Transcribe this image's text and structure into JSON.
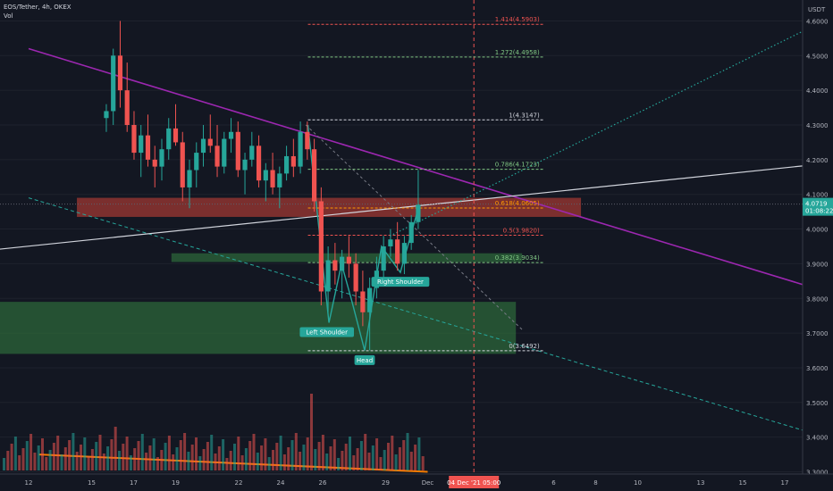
{
  "header": {
    "symbol_line": "EOS/Tether, 4h, OKEX",
    "indicator": "Vol"
  },
  "price_axis": {
    "currency": "USDT",
    "current_price": "4.0719",
    "countdown": "01:08:22"
  },
  "time_axis": {
    "crosshair_label": "04 Dec '21   05:00"
  },
  "colors": {
    "background": "#131722",
    "up": "#26a69a",
    "down": "#ef5350",
    "channel_line": "#9c27b0",
    "volume_trend": "#f57c00",
    "neckline": "#d1d4dc",
    "red_zone": "#a83a33",
    "green_zone": "#2e6b3a"
  },
  "chart_data": {
    "type": "candlestick",
    "title": "EOS/Tether, 4h, OKEX",
    "ylim": [
      3.3,
      4.65
    ],
    "y_ticks": [
      3.3,
      3.4,
      3.5,
      3.6,
      3.7,
      3.8,
      3.9,
      4.0,
      4.1,
      4.2,
      4.3,
      4.4,
      4.5,
      4.6
    ],
    "y_tick_labels": [
      "3.3000",
      "3.4000",
      "3.5000",
      "3.6000",
      "3.7000",
      "3.8000",
      "3.9000",
      "4.0000",
      "4.1000",
      "4.2000",
      "4.3000",
      "4.4000",
      "4.5000",
      "4.6000"
    ],
    "x_ticks": [
      {
        "label": "12",
        "day": 12
      },
      {
        "label": "15",
        "day": 15
      },
      {
        "label": "17",
        "day": 17
      },
      {
        "label": "19",
        "day": 19
      },
      {
        "label": "22",
        "day": 22
      },
      {
        "label": "24",
        "day": 24
      },
      {
        "label": "26",
        "day": 26
      },
      {
        "label": "29",
        "day": 29
      },
      {
        "label": "Dec",
        "day": 31
      },
      {
        "label": "6",
        "day": 37
      },
      {
        "label": "8",
        "day": 39
      },
      {
        "label": "10",
        "day": 41
      },
      {
        "label": "13",
        "day": 44
      },
      {
        "label": "15",
        "day": 46
      },
      {
        "label": "17",
        "day": 48
      }
    ],
    "fib_levels": [
      {
        "label": "1.414(4.5903)",
        "value": 4.5903,
        "color": "#ef5350"
      },
      {
        "label": "1.272(4.4958)",
        "value": 4.4958,
        "color": "#81c784"
      },
      {
        "label": "1(4.3147)",
        "value": 4.3147,
        "color": "#d1d4dc"
      },
      {
        "label": "0.786(4.1723)",
        "value": 4.1723,
        "color": "#81c784"
      },
      {
        "label": "0.618(4.0605)",
        "value": 4.0605,
        "color": "#ff9800"
      },
      {
        "label": "0.5(3.9820)",
        "value": 3.982,
        "color": "#ef5350"
      },
      {
        "label": "0.382(3.9034)",
        "value": 3.9034,
        "color": "#81c784"
      },
      {
        "label": "0(3.6492)",
        "value": 3.6492,
        "color": "#d1d4dc"
      }
    ],
    "pattern_labels": [
      {
        "text": "Left Shoulder",
        "day": 26.2,
        "price": 3.73
      },
      {
        "text": "Head",
        "day": 28.0,
        "price": 3.649
      },
      {
        "text": "Right Shoulder",
        "day": 29.7,
        "price": 3.875
      }
    ],
    "candles_ohlc": [
      [
        4.32,
        4.36,
        4.28,
        4.34
      ],
      [
        4.34,
        4.52,
        4.3,
        4.5
      ],
      [
        4.5,
        4.6,
        4.35,
        4.4
      ],
      [
        4.4,
        4.48,
        4.28,
        4.3
      ],
      [
        4.3,
        4.34,
        4.2,
        4.22
      ],
      [
        4.22,
        4.3,
        4.15,
        4.27
      ],
      [
        4.27,
        4.33,
        4.18,
        4.2
      ],
      [
        4.2,
        4.24,
        4.12,
        4.18
      ],
      [
        4.18,
        4.26,
        4.14,
        4.23
      ],
      [
        4.23,
        4.32,
        4.2,
        4.29
      ],
      [
        4.29,
        4.36,
        4.24,
        4.25
      ],
      [
        4.25,
        4.28,
        4.08,
        4.12
      ],
      [
        4.12,
        4.2,
        4.06,
        4.17
      ],
      [
        4.17,
        4.25,
        4.12,
        4.22
      ],
      [
        4.22,
        4.3,
        4.18,
        4.26
      ],
      [
        4.26,
        4.33,
        4.22,
        4.24
      ],
      [
        4.24,
        4.3,
        4.15,
        4.18
      ],
      [
        4.18,
        4.28,
        4.16,
        4.26
      ],
      [
        4.26,
        4.32,
        4.22,
        4.28
      ],
      [
        4.28,
        4.31,
        4.15,
        4.17
      ],
      [
        4.17,
        4.22,
        4.1,
        4.2
      ],
      [
        4.2,
        4.28,
        4.18,
        4.24
      ],
      [
        4.24,
        4.27,
        4.12,
        4.14
      ],
      [
        4.14,
        4.19,
        4.08,
        4.17
      ],
      [
        4.17,
        4.22,
        4.1,
        4.12
      ],
      [
        4.12,
        4.18,
        4.06,
        4.16
      ],
      [
        4.16,
        4.24,
        4.14,
        4.21
      ],
      [
        4.21,
        4.26,
        4.15,
        4.18
      ],
      [
        4.18,
        4.31,
        4.16,
        4.28
      ],
      [
        4.28,
        4.31,
        4.2,
        4.23
      ],
      [
        4.23,
        4.26,
        4.05,
        4.08
      ],
      [
        4.08,
        4.12,
        3.78,
        3.82
      ],
      [
        3.82,
        3.95,
        3.76,
        3.91
      ],
      [
        3.91,
        3.96,
        3.84,
        3.88
      ],
      [
        3.88,
        3.94,
        3.8,
        3.92
      ],
      [
        3.92,
        3.98,
        3.86,
        3.9
      ],
      [
        3.9,
        3.93,
        3.78,
        3.82
      ],
      [
        3.82,
        3.88,
        3.72,
        3.76
      ],
      [
        3.76,
        3.86,
        3.65,
        3.83
      ],
      [
        3.83,
        3.92,
        3.8,
        3.88
      ],
      [
        3.88,
        3.98,
        3.85,
        3.95
      ],
      [
        3.95,
        4.0,
        3.92,
        3.97
      ],
      [
        3.97,
        4.02,
        3.88,
        3.9
      ],
      [
        3.9,
        3.98,
        3.87,
        3.96
      ],
      [
        3.96,
        4.04,
        3.94,
        4.02
      ],
      [
        4.02,
        4.17,
        4.0,
        4.07
      ]
    ],
    "volume_trendline": {
      "from_day": 11.5,
      "to_day": 31
    }
  }
}
